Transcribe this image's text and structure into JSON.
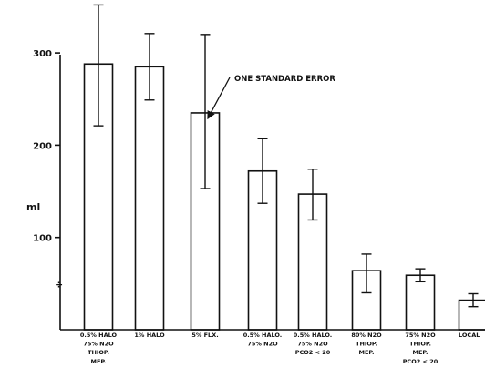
{
  "chart_data": {
    "type": "bar",
    "ylabel": "ml",
    "ylim": [
      0,
      300
    ],
    "yticks": [
      100,
      200,
      300
    ],
    "annotation": "ONE STANDARD ERROR",
    "categories": [
      [
        "0.5% HALO",
        "75% N2O",
        "THIOP.",
        "MEP."
      ],
      [
        "1% HALO"
      ],
      [
        "5% FLX."
      ],
      [
        "0.5% HALO.",
        "75% N2O"
      ],
      [
        "0.5% HALO.",
        "75% N2O",
        "PCO2 < 20"
      ],
      [
        "80% N2O",
        "THIOP.",
        "MEP."
      ],
      [
        "75% N2O",
        "THIOP.",
        "MEP.",
        "PCO2 < 20"
      ],
      [
        "LOCAL"
      ]
    ],
    "values": [
      288,
      285,
      235,
      172,
      147,
      64,
      59,
      32
    ],
    "error_high": [
      352,
      321,
      320,
      207,
      174,
      82,
      66,
      39
    ],
    "error_low": [
      221,
      249,
      153,
      137,
      119,
      40,
      52,
      25
    ],
    "styles": [
      "stipple",
      "stipple",
      "stipple",
      "stipple",
      "stipple",
      "stipple",
      "stipple",
      "hatched"
    ]
  }
}
